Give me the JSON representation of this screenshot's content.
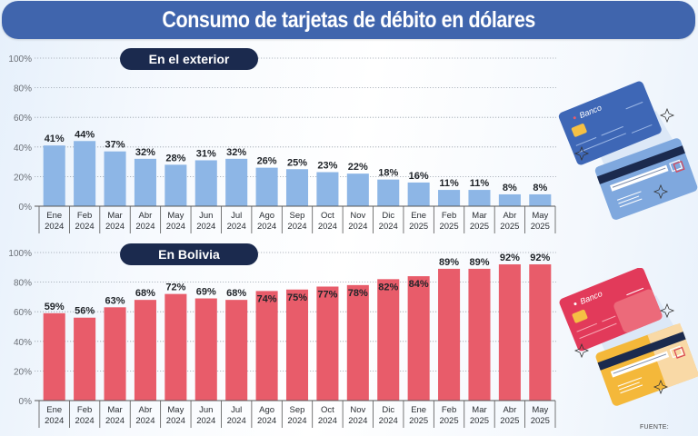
{
  "title": "Consumo de tarjetas de débito en dólares",
  "source_label": "FUENTE:",
  "colors": {
    "title_bg": "#4065ad",
    "pill_bg": "#1b2a4e",
    "exterior_bar": "#8db6e6",
    "bolivia_bar": "#e85c6a"
  },
  "chart_data": [
    {
      "type": "bar",
      "title": "En el exterior",
      "xlabel": "",
      "ylabel": "",
      "ylim": [
        0,
        100
      ],
      "y_ticks": [
        "0%",
        "20%",
        "40%",
        "60%",
        "80%",
        "100%"
      ],
      "grid": true,
      "categories": [
        [
          "Ene",
          "2024"
        ],
        [
          "Feb",
          "2024"
        ],
        [
          "Mar",
          "2024"
        ],
        [
          "Abr",
          "2024"
        ],
        [
          "May",
          "2024"
        ],
        [
          "Jun",
          "2024"
        ],
        [
          "Jul",
          "2024"
        ],
        [
          "Ago",
          "2024"
        ],
        [
          "Sep",
          "2024"
        ],
        [
          "Oct",
          "2024"
        ],
        [
          "Nov",
          "2024"
        ],
        [
          "Dic",
          "2024"
        ],
        [
          "Ene",
          "2025"
        ],
        [
          "Feb",
          "2025"
        ],
        [
          "Mar",
          "2025"
        ],
        [
          "Abr",
          "2025"
        ],
        [
          "May",
          "2025"
        ]
      ],
      "values": [
        41,
        44,
        37,
        32,
        28,
        31,
        32,
        26,
        25,
        23,
        22,
        18,
        16,
        11,
        11,
        8,
        8
      ],
      "data_labels": [
        "41%",
        "44%",
        "37%",
        "32%",
        "28%",
        "31%",
        "32%",
        "26%",
        "25%",
        "23%",
        "22%",
        "18%",
        "16%",
        "11%",
        "11%",
        "8%",
        "8%"
      ]
    },
    {
      "type": "bar",
      "title": "En Bolivia",
      "xlabel": "",
      "ylabel": "",
      "ylim": [
        0,
        100
      ],
      "y_ticks": [
        "0%",
        "20%",
        "40%",
        "60%",
        "80%",
        "100%"
      ],
      "grid": true,
      "categories": [
        [
          "Ene",
          "2024"
        ],
        [
          "Feb",
          "2024"
        ],
        [
          "Mar",
          "2024"
        ],
        [
          "Abr",
          "2024"
        ],
        [
          "May",
          "2024"
        ],
        [
          "Jun",
          "2024"
        ],
        [
          "Jul",
          "2024"
        ],
        [
          "Ago",
          "2024"
        ],
        [
          "Sep",
          "2024"
        ],
        [
          "Oct",
          "2024"
        ],
        [
          "Nov",
          "2024"
        ],
        [
          "Dic",
          "2024"
        ],
        [
          "Ene",
          "2025"
        ],
        [
          "Feb",
          "2025"
        ],
        [
          "Mar",
          "2025"
        ],
        [
          "Abr",
          "2025"
        ],
        [
          "May",
          "2025"
        ]
      ],
      "values": [
        59,
        56,
        63,
        68,
        72,
        69,
        68,
        74,
        75,
        77,
        78,
        82,
        84,
        89,
        89,
        92,
        92
      ],
      "data_labels": [
        "59%",
        "56%",
        "63%",
        "68%",
        "72%",
        "69%",
        "68%",
        "74%",
        "75%",
        "77%",
        "78%",
        "82%",
        "84%",
        "89%",
        "89%",
        "92%",
        "92%"
      ]
    }
  ],
  "illustrations": {
    "top_card_brand": "Banco",
    "bottom_card_brand": "Banco"
  }
}
